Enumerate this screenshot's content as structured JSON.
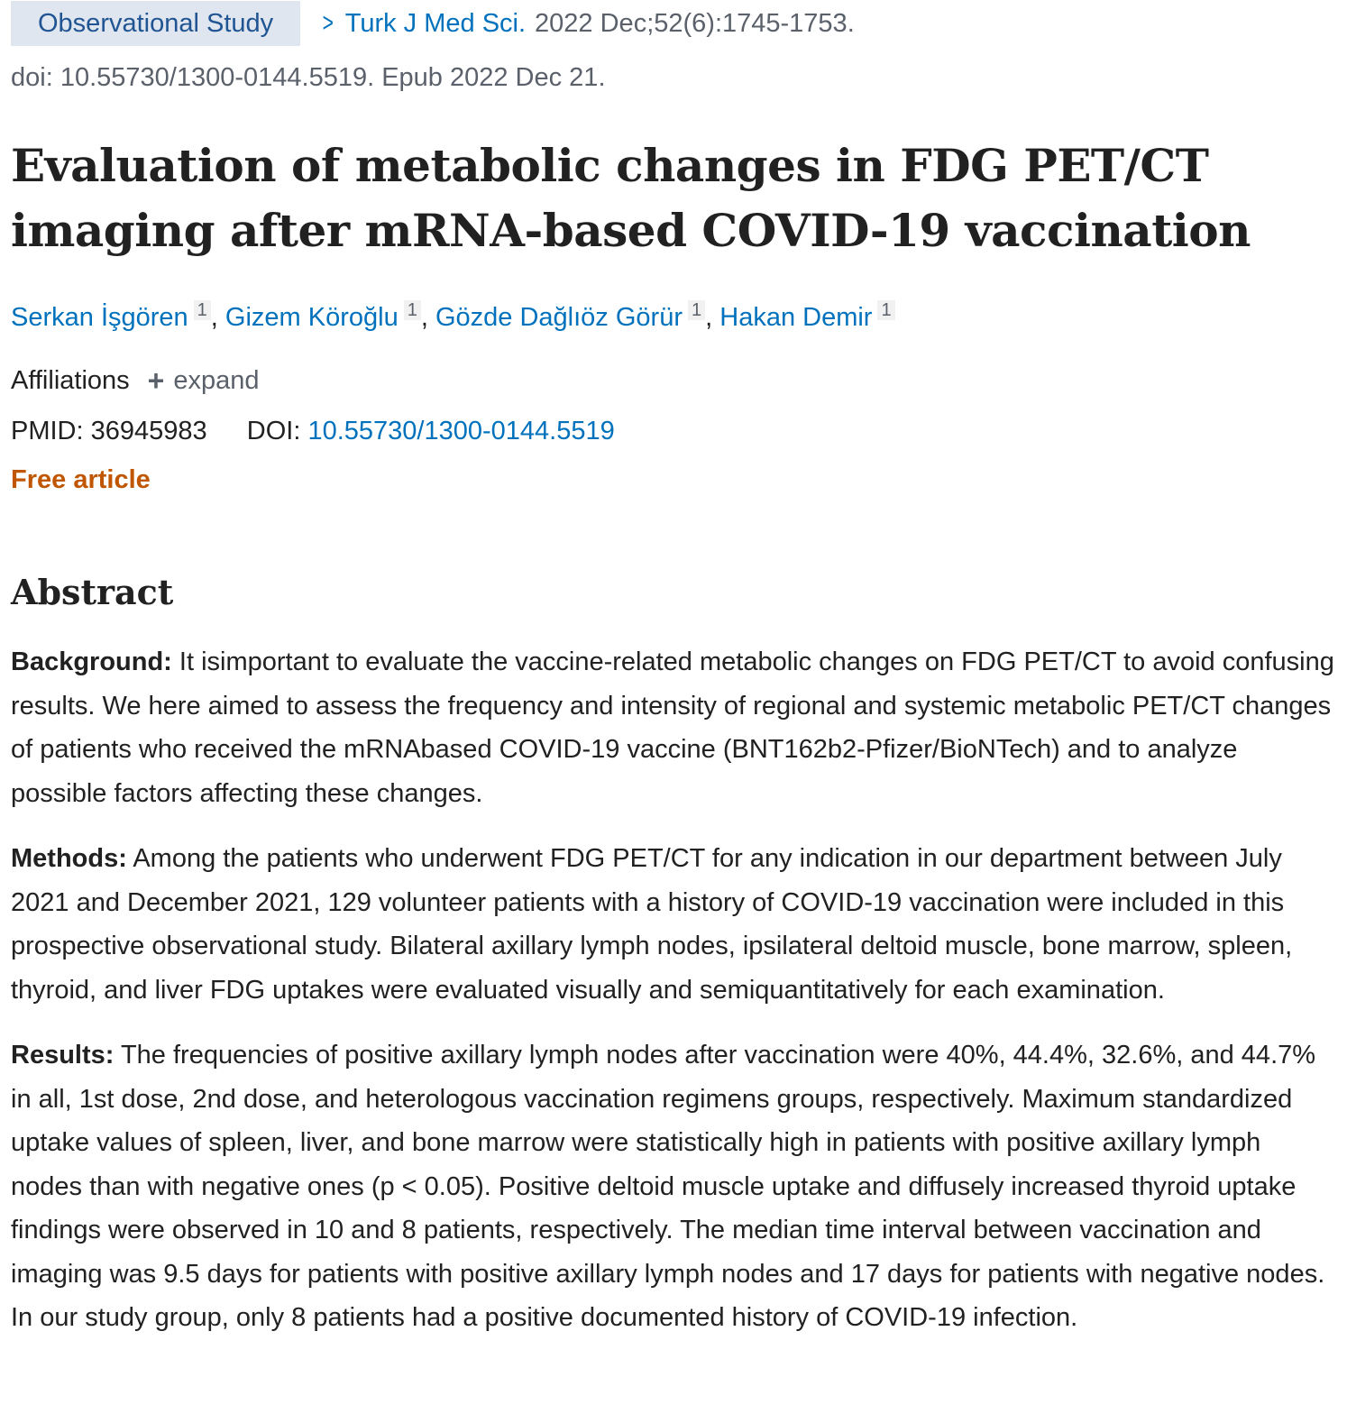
{
  "header": {
    "publication_type": "Observational Study",
    "journal_name": "Turk J Med Sci.",
    "journal_citation": "2022 Dec;52(6):1745-1753.",
    "doi_line": "doi: 10.55730/1300-0144.5519. Epub 2022 Dec 21."
  },
  "title": "Evaluation of metabolic changes in FDG PET/CT imaging after mRNA-based COVID-19 vaccination",
  "authors": [
    {
      "name": "Serkan İşgören",
      "affiliation": "1"
    },
    {
      "name": "Gizem Köroğlu",
      "affiliation": "1"
    },
    {
      "name": "Gözde Dağlıöz Görür",
      "affiliation": "1"
    },
    {
      "name": "Hakan Demir",
      "affiliation": "1"
    }
  ],
  "affiliations": {
    "label": "Affiliations",
    "expand_label": "expand",
    "expand_icon": "plus-icon"
  },
  "identifiers": {
    "pmid_label": "PMID:",
    "pmid": "36945983",
    "doi_label": "DOI:",
    "doi": "10.55730/1300-0144.5519"
  },
  "free_article": "Free article",
  "abstract": {
    "heading": "Abstract",
    "background": {
      "label": "Background:",
      "text": " It isimportant to evaluate the vaccine-related metabolic changes on FDG PET/CT to avoid confusing results. We here aimed to assess the frequency and intensity of regional and systemic metabolic PET/CT changes of patients who received the mRNAbased COVID-19 vaccine (BNT162b2-Pfizer/BioNTech) and to analyze possible factors affecting these changes."
    },
    "methods": {
      "label": "Methods:",
      "text": " Among the patients who underwent FDG PET/CT for any indication in our department between July 2021 and December 2021, 129 volunteer patients with a history of COVID-19 vaccination were included in this prospective observational study. Bilateral axillary lymph nodes, ipsilateral deltoid muscle, bone marrow, spleen, thyroid, and liver FDG uptakes were evaluated visually and semiquantitatively for each examination."
    },
    "results": {
      "label": "Results:",
      "text": " The frequencies of positive axillary lymph nodes after vaccination were 40%, 44.4%, 32.6%, and 44.7% in all, 1st dose, 2nd dose, and heterologous vaccination regimens groups, respectively. Maximum standardized uptake values of spleen, liver, and bone marrow were statistically high in patients with positive axillary lymph nodes than with negative ones (p < 0.05). Positive deltoid muscle uptake and diffusely increased thyroid uptake findings were observed in 10 and 8 patients, respectively. The median time interval between vaccination and imaging was 9.5 days for patients with positive axillary lymph nodes and 17 days for patients with negative nodes. In our study group, only 8 patients had a positive documented history of COVID-19 infection."
    }
  }
}
